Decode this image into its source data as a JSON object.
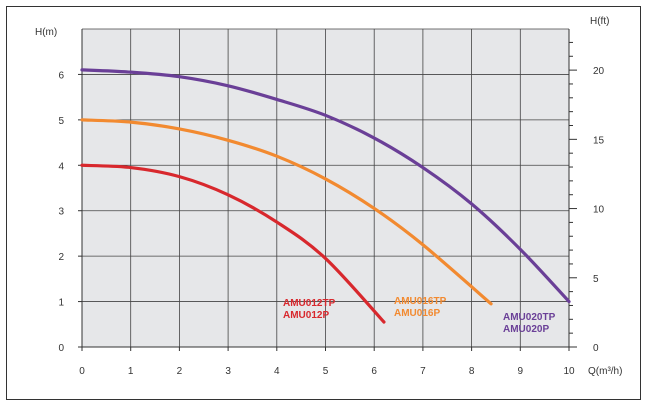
{
  "chart_data": {
    "type": "line",
    "title": "",
    "xlabel": "Q(m³/h)",
    "ylabel_left": "H(m)",
    "ylabel_right": "H(ft)",
    "xlim": [
      0,
      10
    ],
    "ylim_left": [
      0,
      7
    ],
    "ylim_right_ft": [
      0,
      22.97
    ],
    "x_ticks": [
      0,
      1,
      2,
      3,
      4,
      5,
      6,
      7,
      8,
      9,
      10
    ],
    "y_left_ticks": [
      0,
      1,
      2,
      3,
      4,
      5,
      6
    ],
    "y_right_ticks": [
      0,
      5,
      10,
      15,
      20
    ],
    "grid": true,
    "series": [
      {
        "id": "amu012",
        "label_lines": [
          "AMU012TP",
          "AMU012P"
        ],
        "color": "#d8282d",
        "x": [
          0,
          1,
          2,
          3,
          4,
          5,
          6.2
        ],
        "y": [
          4.0,
          3.95,
          3.75,
          3.35,
          2.75,
          1.95,
          0.55
        ]
      },
      {
        "id": "amu016",
        "label_lines": [
          "AMU016TP",
          "AMU016P"
        ],
        "color": "#f28a30",
        "x": [
          0,
          1,
          2,
          3,
          4,
          5,
          6,
          7,
          8.4
        ],
        "y": [
          5.0,
          4.95,
          4.8,
          4.55,
          4.2,
          3.7,
          3.05,
          2.25,
          0.95
        ]
      },
      {
        "id": "amu020",
        "label_lines": [
          "AMU020TP",
          "AMU020P"
        ],
        "color": "#6a3f97",
        "x": [
          0,
          1,
          2,
          3,
          4,
          5,
          6,
          7,
          8,
          9,
          10
        ],
        "y": [
          6.1,
          6.05,
          5.95,
          5.75,
          5.45,
          5.1,
          4.6,
          3.95,
          3.15,
          2.15,
          1.0
        ]
      }
    ]
  }
}
